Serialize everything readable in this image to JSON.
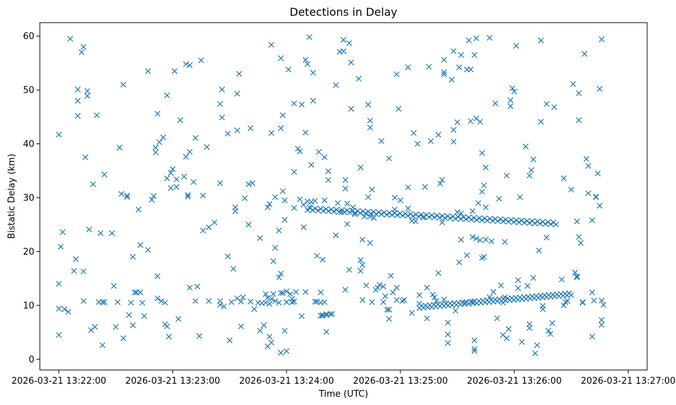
{
  "chart_data": {
    "type": "scatter",
    "title": "Detections in Delay",
    "xlabel": "Time (UTC)",
    "ylabel": "Bistatic Delay (km)",
    "x_unit": "seconds since 2026-03-21 13:22:00",
    "xlim": [
      -10,
      310
    ],
    "ylim": [
      -2,
      62.5
    ],
    "x_ticks": [
      {
        "value": 0,
        "label": "2026-03-21 13:22:00"
      },
      {
        "value": 60,
        "label": "2026-03-21 13:23:00"
      },
      {
        "value": 120,
        "label": "2026-03-21 13:24:00"
      },
      {
        "value": 180,
        "label": "2026-03-21 13:25:00"
      },
      {
        "value": 240,
        "label": "2026-03-21 13:26:00"
      },
      {
        "value": 300,
        "label": "2026-03-21 13:27:00"
      }
    ],
    "y_ticks": [
      {
        "value": 0,
        "label": "0"
      },
      {
        "value": 10,
        "label": "10"
      },
      {
        "value": 20,
        "label": "20"
      },
      {
        "value": 30,
        "label": "30"
      },
      {
        "value": 40,
        "label": "40"
      },
      {
        "value": 50,
        "label": "50"
      },
      {
        "value": 60,
        "label": "60"
      }
    ],
    "marker": "x",
    "color": "#1f77b4",
    "track_upper": {
      "x_start": 131,
      "x_end": 262,
      "y_start": 27.9,
      "y_end": 25.2,
      "count": 95
    },
    "track_lower": {
      "x_start": 190,
      "x_end": 270,
      "y_start": 9.7,
      "y_end": 12.1,
      "count": 75
    },
    "scatter": [
      [
        0,
        41.7
      ],
      [
        0,
        14
      ],
      [
        0,
        9.4
      ],
      [
        0,
        4.5
      ],
      [
        1,
        20.9
      ],
      [
        2,
        23.6
      ],
      [
        3,
        9.3
      ],
      [
        5,
        8.8
      ],
      [
        6,
        59.5
      ],
      [
        8,
        16.4
      ],
      [
        9,
        18.6
      ],
      [
        10,
        50.1
      ],
      [
        10,
        48
      ],
      [
        10,
        45.2
      ],
      [
        12,
        57
      ],
      [
        13,
        58
      ],
      [
        13,
        10.8
      ],
      [
        13,
        16.3
      ],
      [
        14,
        37.5
      ],
      [
        15,
        49.8
      ],
      [
        15,
        48.9
      ],
      [
        16,
        24.1
      ],
      [
        17,
        5.4
      ],
      [
        18,
        32.5
      ],
      [
        19,
        6
      ],
      [
        20,
        45.3
      ],
      [
        21,
        10.6
      ],
      [
        22,
        23.4
      ],
      [
        23,
        2.6
      ],
      [
        23,
        10.6
      ],
      [
        24,
        34.3
      ],
      [
        24,
        10.6
      ],
      [
        28,
        23.4
      ],
      [
        29,
        13.6
      ],
      [
        30,
        6
      ],
      [
        31,
        10.6
      ],
      [
        32,
        39.3
      ],
      [
        33,
        30.7
      ],
      [
        34,
        51
      ],
      [
        34,
        3.9
      ],
      [
        36,
        30.1
      ],
      [
        36,
        30.4
      ],
      [
        37,
        8.2
      ],
      [
        38,
        10.5
      ],
      [
        39,
        19
      ],
      [
        39,
        6.3
      ],
      [
        40,
        12.4
      ],
      [
        41,
        12.4
      ],
      [
        42,
        27.8
      ],
      [
        43,
        21.2
      ],
      [
        43,
        12.4
      ],
      [
        44,
        10.5
      ],
      [
        45,
        8
      ],
      [
        47,
        20.3
      ],
      [
        47,
        53.5
      ],
      [
        49,
        29.6
      ],
      [
        50,
        30.3
      ],
      [
        51,
        38.4
      ],
      [
        51,
        39.3
      ],
      [
        52,
        45.6
      ],
      [
        52,
        11.3
      ],
      [
        52,
        15.4
      ],
      [
        53,
        40.3
      ],
      [
        54,
        10.8
      ],
      [
        55,
        41.2
      ],
      [
        56,
        10.5
      ],
      [
        56,
        6.5
      ],
      [
        57,
        6.1
      ],
      [
        57,
        49
      ],
      [
        57,
        33.6
      ],
      [
        58,
        4.2
      ],
      [
        59,
        31.8
      ],
      [
        59,
        34.6
      ],
      [
        60,
        35.3
      ],
      [
        61,
        53.5
      ],
      [
        62,
        33.4
      ],
      [
        62,
        32
      ],
      [
        63,
        7.5
      ],
      [
        64,
        44.4
      ],
      [
        66,
        33.9
      ],
      [
        67,
        37.6
      ],
      [
        67,
        54.8
      ],
      [
        68,
        30.2
      ],
      [
        68,
        30.5
      ],
      [
        69,
        54.6
      ],
      [
        69,
        13.3
      ],
      [
        69,
        38.5
      ],
      [
        71,
        32.9
      ],
      [
        72,
        41.1
      ],
      [
        72,
        10.8
      ],
      [
        73,
        13.5
      ],
      [
        74,
        4.3
      ],
      [
        75,
        55.5
      ],
      [
        76,
        30.4
      ],
      [
        76,
        23.9
      ],
      [
        78,
        39.4
      ],
      [
        79,
        24.5
      ],
      [
        79,
        10.8
      ],
      [
        82,
        25.4
      ],
      [
        85,
        10.8
      ],
      [
        85,
        10.1
      ],
      [
        85,
        32.7
      ],
      [
        85,
        47.4
      ],
      [
        86,
        50.1
      ],
      [
        86,
        44.9
      ],
      [
        87,
        9.8
      ],
      [
        89,
        41.9
      ],
      [
        89,
        19.1
      ],
      [
        90,
        3.5
      ],
      [
        91,
        10.6
      ],
      [
        92,
        16.8
      ],
      [
        93,
        28.2
      ],
      [
        93,
        27.5
      ],
      [
        94,
        42.5
      ],
      [
        94,
        11.3
      ],
      [
        94,
        49.3
      ],
      [
        95,
        53
      ],
      [
        96,
        10.7
      ],
      [
        96,
        6.1
      ],
      [
        97,
        11.5
      ],
      [
        98,
        29.9
      ],
      [
        100,
        25
      ],
      [
        100,
        32.5
      ],
      [
        101,
        10.7
      ],
      [
        101,
        42.9
      ],
      [
        102,
        32.7
      ],
      [
        103,
        9.3
      ],
      [
        105,
        10.5
      ],
      [
        106,
        22.5
      ],
      [
        106,
        5.3
      ],
      [
        107,
        10.4
      ],
      [
        108,
        6.3
      ],
      [
        109,
        10.5
      ],
      [
        109,
        12.1
      ],
      [
        110,
        28.2
      ],
      [
        110,
        11.4
      ],
      [
        110,
        2.4
      ],
      [
        111,
        4.2
      ],
      [
        111,
        28.8
      ],
      [
        111,
        10.3
      ],
      [
        112,
        58.4
      ],
      [
        112,
        3.1
      ],
      [
        112,
        42
      ],
      [
        112,
        11.2
      ],
      [
        113,
        12.1
      ],
      [
        113,
        18.2
      ],
      [
        114,
        10.8
      ],
      [
        114,
        20.7
      ],
      [
        114,
        30.1
      ],
      [
        116,
        10.5
      ],
      [
        116,
        23.9
      ],
      [
        116,
        15.2
      ],
      [
        117,
        55.9
      ],
      [
        117,
        42.9
      ],
      [
        117,
        12.3
      ],
      [
        117,
        1.2
      ],
      [
        117,
        15.9
      ],
      [
        118,
        12.3
      ],
      [
        118,
        45.3
      ],
      [
        118,
        31.2
      ],
      [
        119,
        29.5
      ],
      [
        119,
        25.9
      ],
      [
        119,
        5.3
      ],
      [
        120,
        1.5
      ],
      [
        120,
        10.6
      ],
      [
        120,
        12.6
      ],
      [
        120,
        10.6
      ],
      [
        121,
        53.8
      ],
      [
        122,
        12.1
      ],
      [
        123,
        10.6
      ],
      [
        123,
        11.2
      ],
      [
        124,
        47.5
      ],
      [
        124,
        10.7
      ],
      [
        124,
        34.8
      ],
      [
        124,
        28.1
      ],
      [
        125,
        12.5
      ],
      [
        126,
        39.1
      ],
      [
        127,
        38.6
      ],
      [
        127,
        29.7
      ],
      [
        128,
        8
      ],
      [
        128,
        47.3
      ],
      [
        129,
        28.7
      ],
      [
        129,
        24.5
      ],
      [
        130,
        55.6
      ],
      [
        130,
        42.1
      ],
      [
        130,
        12.5
      ],
      [
        131,
        54.8
      ],
      [
        131,
        29.3
      ],
      [
        132,
        59.8
      ],
      [
        132,
        28.2
      ],
      [
        133,
        29.2
      ],
      [
        133,
        36.1
      ],
      [
        134,
        48
      ],
      [
        134,
        53.2
      ],
      [
        135,
        10.7
      ],
      [
        135,
        29.4
      ],
      [
        136,
        19.2
      ],
      [
        136,
        10.7
      ],
      [
        137,
        38.5
      ],
      [
        138,
        12.4
      ],
      [
        138,
        8.1
      ],
      [
        138,
        10.5
      ],
      [
        139,
        18.5
      ],
      [
        139,
        8.2
      ],
      [
        139,
        8.1
      ],
      [
        140,
        10.6
      ],
      [
        140,
        37.5
      ],
      [
        140,
        29.5
      ],
      [
        141,
        5.1
      ],
      [
        141,
        8.2
      ],
      [
        141,
        8.4
      ],
      [
        142,
        34.9
      ],
      [
        142,
        33.3
      ],
      [
        143,
        8.4
      ],
      [
        144,
        8.4
      ],
      [
        146,
        50.9
      ],
      [
        146,
        23
      ],
      [
        147,
        29
      ],
      [
        148,
        57.1
      ],
      [
        149,
        27.3
      ],
      [
        150,
        57.2
      ],
      [
        150,
        59.3
      ],
      [
        151,
        12.9
      ],
      [
        151,
        33.3
      ],
      [
        151,
        31.7
      ],
      [
        152,
        25.1
      ],
      [
        152,
        28.9
      ],
      [
        153,
        16.6
      ],
      [
        153,
        58.7
      ],
      [
        154,
        55.1
      ],
      [
        154,
        46.5
      ],
      [
        155,
        28.2
      ],
      [
        156,
        26.9
      ],
      [
        158,
        52.1
      ],
      [
        159,
        35.6
      ],
      [
        159,
        16.4
      ],
      [
        159,
        18.4
      ],
      [
        160,
        22.2
      ],
      [
        160,
        17.5
      ],
      [
        160,
        11
      ],
      [
        161,
        26.5
      ],
      [
        162,
        13.7
      ],
      [
        163,
        47.3
      ],
      [
        163,
        30.1
      ],
      [
        164,
        44.3
      ],
      [
        164,
        26.5
      ],
      [
        164,
        43
      ],
      [
        164,
        21.6
      ],
      [
        165,
        10.6
      ],
      [
        165,
        31.5
      ],
      [
        166,
        26.2
      ],
      [
        167,
        12.9
      ],
      [
        168,
        13.3
      ],
      [
        169,
        13.8
      ],
      [
        170,
        40.5
      ],
      [
        171,
        13.5
      ],
      [
        171,
        10.6
      ],
      [
        172,
        11.7
      ],
      [
        173,
        9.2
      ],
      [
        174,
        7.5
      ],
      [
        174,
        9.2
      ],
      [
        174,
        37.3
      ],
      [
        175,
        15.5
      ],
      [
        176,
        12.4
      ],
      [
        177,
        27.8
      ],
      [
        177,
        30
      ],
      [
        178,
        52.9
      ],
      [
        178,
        13.3
      ],
      [
        178,
        11
      ],
      [
        179,
        46.5
      ],
      [
        180,
        29.5
      ],
      [
        181,
        10.8
      ],
      [
        182,
        11
      ],
      [
        184,
        28
      ],
      [
        184,
        31.9
      ],
      [
        184,
        54.2
      ],
      [
        186,
        8.6
      ],
      [
        186,
        25.7
      ],
      [
        187,
        42
      ],
      [
        188,
        25.6
      ],
      [
        189,
        40
      ],
      [
        190,
        10.3
      ],
      [
        190,
        11.9
      ],
      [
        192,
        26.3
      ],
      [
        193,
        32
      ],
      [
        194,
        7.6
      ],
      [
        194,
        13.3
      ],
      [
        195,
        54.3
      ],
      [
        196,
        40.5
      ],
      [
        197,
        12
      ],
      [
        198,
        11.5
      ],
      [
        199,
        10.8
      ],
      [
        200,
        41.7
      ],
      [
        200,
        16
      ],
      [
        201,
        32.6
      ],
      [
        202,
        33.3
      ],
      [
        202,
        25.4
      ],
      [
        203,
        53.3
      ],
      [
        203,
        11.1
      ],
      [
        203,
        55.6
      ],
      [
        203,
        52.9
      ],
      [
        204,
        10.3
      ],
      [
        205,
        6.8
      ],
      [
        205,
        4.6
      ],
      [
        205,
        3
      ],
      [
        207,
        51.9
      ],
      [
        208,
        40.4
      ],
      [
        208,
        57.2
      ],
      [
        208,
        42.6
      ],
      [
        209,
        9
      ],
      [
        210,
        44
      ],
      [
        210,
        27.3
      ],
      [
        211,
        54.2
      ],
      [
        211,
        18
      ],
      [
        212,
        27.1
      ],
      [
        212,
        22.2
      ],
      [
        212,
        56.5
      ],
      [
        214,
        10.5
      ],
      [
        215,
        53.8
      ],
      [
        215,
        19.3
      ],
      [
        216,
        59.2
      ],
      [
        217,
        53.8
      ],
      [
        217,
        44.2
      ],
      [
        218,
        22.7
      ],
      [
        218,
        27.5
      ],
      [
        218,
        10.7
      ],
      [
        219,
        1.9
      ],
      [
        219,
        1.5
      ],
      [
        219,
        3.5
      ],
      [
        219,
        56.5
      ],
      [
        220,
        22.4
      ],
      [
        220,
        59.6
      ],
      [
        220,
        44.7
      ],
      [
        221,
        29
      ],
      [
        222,
        22.1
      ],
      [
        222,
        44.1
      ],
      [
        223,
        38.3
      ],
      [
        223,
        31.1
      ],
      [
        223,
        18.8
      ],
      [
        224,
        19
      ],
      [
        224,
        32.3
      ],
      [
        225,
        22.2
      ],
      [
        225,
        35.6
      ],
      [
        225,
        28.2
      ],
      [
        227,
        59.7
      ],
      [
        227,
        11.5
      ],
      [
        228,
        21.9
      ],
      [
        229,
        12.5
      ],
      [
        230,
        47.5
      ],
      [
        231,
        7.6
      ],
      [
        232,
        29.8
      ],
      [
        233,
        13.7
      ],
      [
        234,
        4.5
      ],
      [
        234,
        10.5
      ],
      [
        235,
        21.8
      ],
      [
        235,
        11.5
      ],
      [
        236,
        34.1
      ],
      [
        236,
        3.9
      ],
      [
        237,
        5.6
      ],
      [
        238,
        47
      ],
      [
        238,
        48.1
      ],
      [
        239,
        50.3
      ],
      [
        240,
        49.7
      ],
      [
        241,
        58.2
      ],
      [
        242,
        13.2
      ],
      [
        242,
        14.7
      ],
      [
        243,
        30.1
      ],
      [
        244,
        3.2
      ],
      [
        246,
        39.5
      ],
      [
        247,
        13.6
      ],
      [
        248,
        6.5
      ],
      [
        248,
        5.8
      ],
      [
        248,
        34.1
      ],
      [
        249,
        35.1
      ],
      [
        250,
        15.1
      ],
      [
        250,
        37.1
      ],
      [
        251,
        1.1
      ],
      [
        252,
        2.6
      ],
      [
        253,
        20.2
      ],
      [
        254,
        59.2
      ],
      [
        254,
        44.1
      ],
      [
        255,
        9.3
      ],
      [
        255,
        9.9
      ],
      [
        257,
        22.6
      ],
      [
        257,
        47.4
      ],
      [
        258,
        5.3
      ],
      [
        259,
        4.7
      ],
      [
        260,
        6.7
      ],
      [
        261,
        46.8
      ],
      [
        265,
        14.8
      ],
      [
        266,
        10
      ],
      [
        266,
        33.6
      ],
      [
        267,
        10.6
      ],
      [
        268,
        10.8
      ],
      [
        270,
        31.5
      ],
      [
        271,
        51.1
      ],
      [
        272,
        16.1
      ],
      [
        273,
        15.4
      ],
      [
        273,
        15.2
      ],
      [
        273,
        25.6
      ],
      [
        274,
        44.4
      ],
      [
        274,
        49.4
      ],
      [
        274,
        22.7
      ],
      [
        275,
        21.6
      ],
      [
        276,
        10.6
      ],
      [
        276,
        10.5
      ],
      [
        277,
        56.7
      ],
      [
        278,
        37.2
      ],
      [
        279,
        35.9
      ],
      [
        279,
        30.8
      ],
      [
        281,
        25.8
      ],
      [
        281,
        4.2
      ],
      [
        281,
        12.4
      ],
      [
        282,
        10.9
      ],
      [
        283,
        30.2
      ],
      [
        283,
        30.1
      ],
      [
        284,
        34.5
      ],
      [
        285,
        28.5
      ],
      [
        285,
        50.2
      ],
      [
        286,
        59.4
      ],
      [
        286,
        6.4
      ],
      [
        286,
        7.3
      ],
      [
        286,
        10.9
      ],
      [
        287,
        10.1
      ]
    ]
  }
}
